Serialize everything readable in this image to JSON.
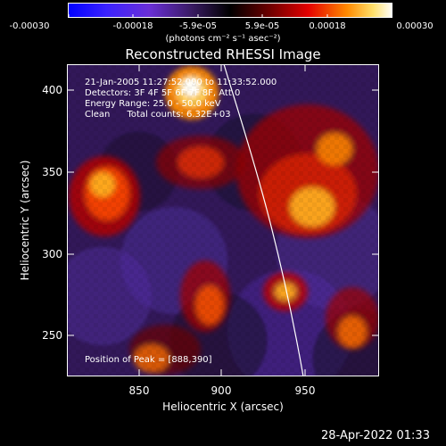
{
  "colorbar": {
    "ticks": [
      "-0.00030",
      "-0.00018",
      "-5.9e-05",
      "5.9e-05",
      "0.00018",
      "0.00030"
    ],
    "units": "(photons cm⁻² s⁻¹ asec⁻²)"
  },
  "plot": {
    "title": "Reconstructed RHESSI Image",
    "xlabel": "Heliocentric X (arcsec)",
    "ylabel": "Heliocentric Y (arcsec)",
    "xticks": [
      "850",
      "900",
      "950"
    ],
    "yticks": [
      "400",
      "350",
      "300",
      "250"
    ],
    "info_lines": [
      "21-Jan-2005 11:27:52.000 to 11:33:52.000",
      "Detectors: 3F 4F 5F 6F 7F 8F, Att 0",
      "Energy Range: 25.0 - 50.0 keV",
      "Clean      Total counts: 6.32E+03"
    ],
    "peak_text": "Position of Peak = [888,390]"
  },
  "footer": {
    "datetime": "28-Apr-2022 01:33"
  }
}
